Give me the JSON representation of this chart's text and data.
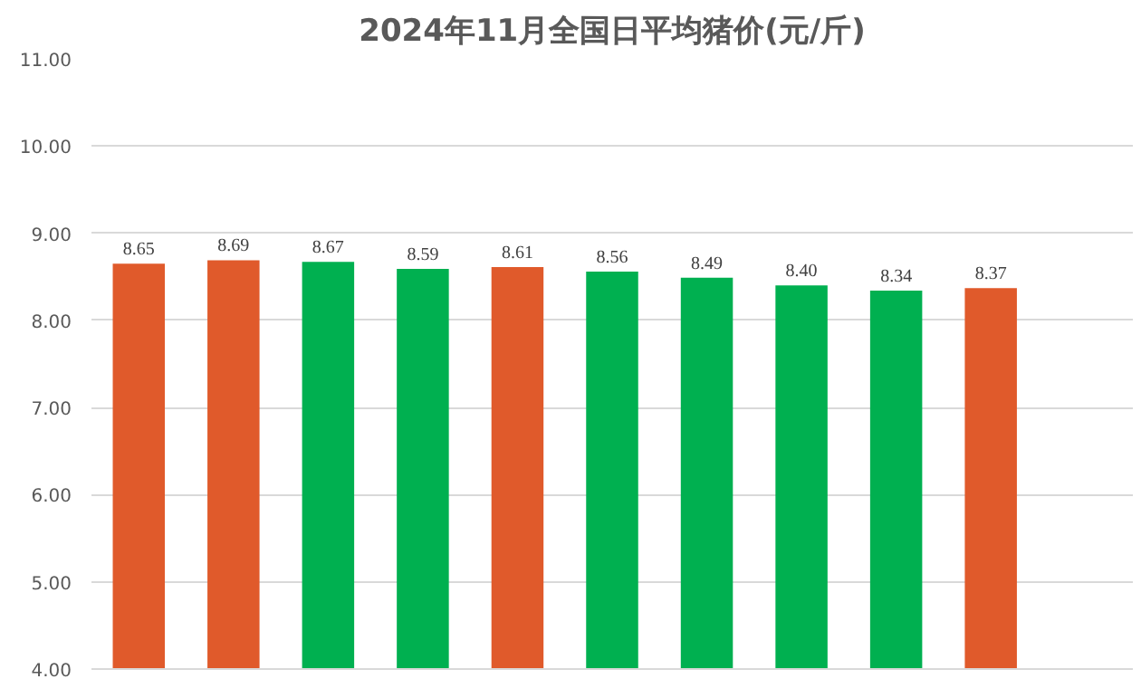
{
  "chart_data": {
    "type": "bar",
    "title": "2024年11月全国日平均猪价(元/斤)",
    "categories": [
      null,
      null,
      null,
      null,
      null,
      null,
      null,
      null,
      null,
      null,
      null
    ],
    "values": [
      8.65,
      8.69,
      8.67,
      8.59,
      8.61,
      8.56,
      8.49,
      8.4,
      8.34,
      8.37,
      null
    ],
    "value_labels": [
      "8.65",
      "8.69",
      "8.67",
      "8.59",
      "8.61",
      "8.56",
      "8.49",
      "8.40",
      "8.34",
      "8.37",
      null
    ],
    "colors": [
      "#e05a2b",
      "#e05a2b",
      "#00b050",
      "#00b050",
      "#e05a2b",
      "#00b050",
      "#00b050",
      "#00b050",
      "#00b050",
      "#e05a2b",
      "#e05a2b"
    ],
    "ylim": [
      4,
      11
    ],
    "yticks": [
      {
        "value": 4,
        "label": "4.00"
      },
      {
        "value": 5,
        "label": "5.00"
      },
      {
        "value": 6,
        "label": "6.00"
      },
      {
        "value": 7,
        "label": "7.00"
      },
      {
        "value": 8,
        "label": "8.00"
      },
      {
        "value": 9,
        "label": "9.00"
      },
      {
        "value": 10,
        "label": "10.00"
      },
      {
        "value": 11,
        "label": "11.00"
      }
    ],
    "grid": "y",
    "tick_labels": "y"
  }
}
